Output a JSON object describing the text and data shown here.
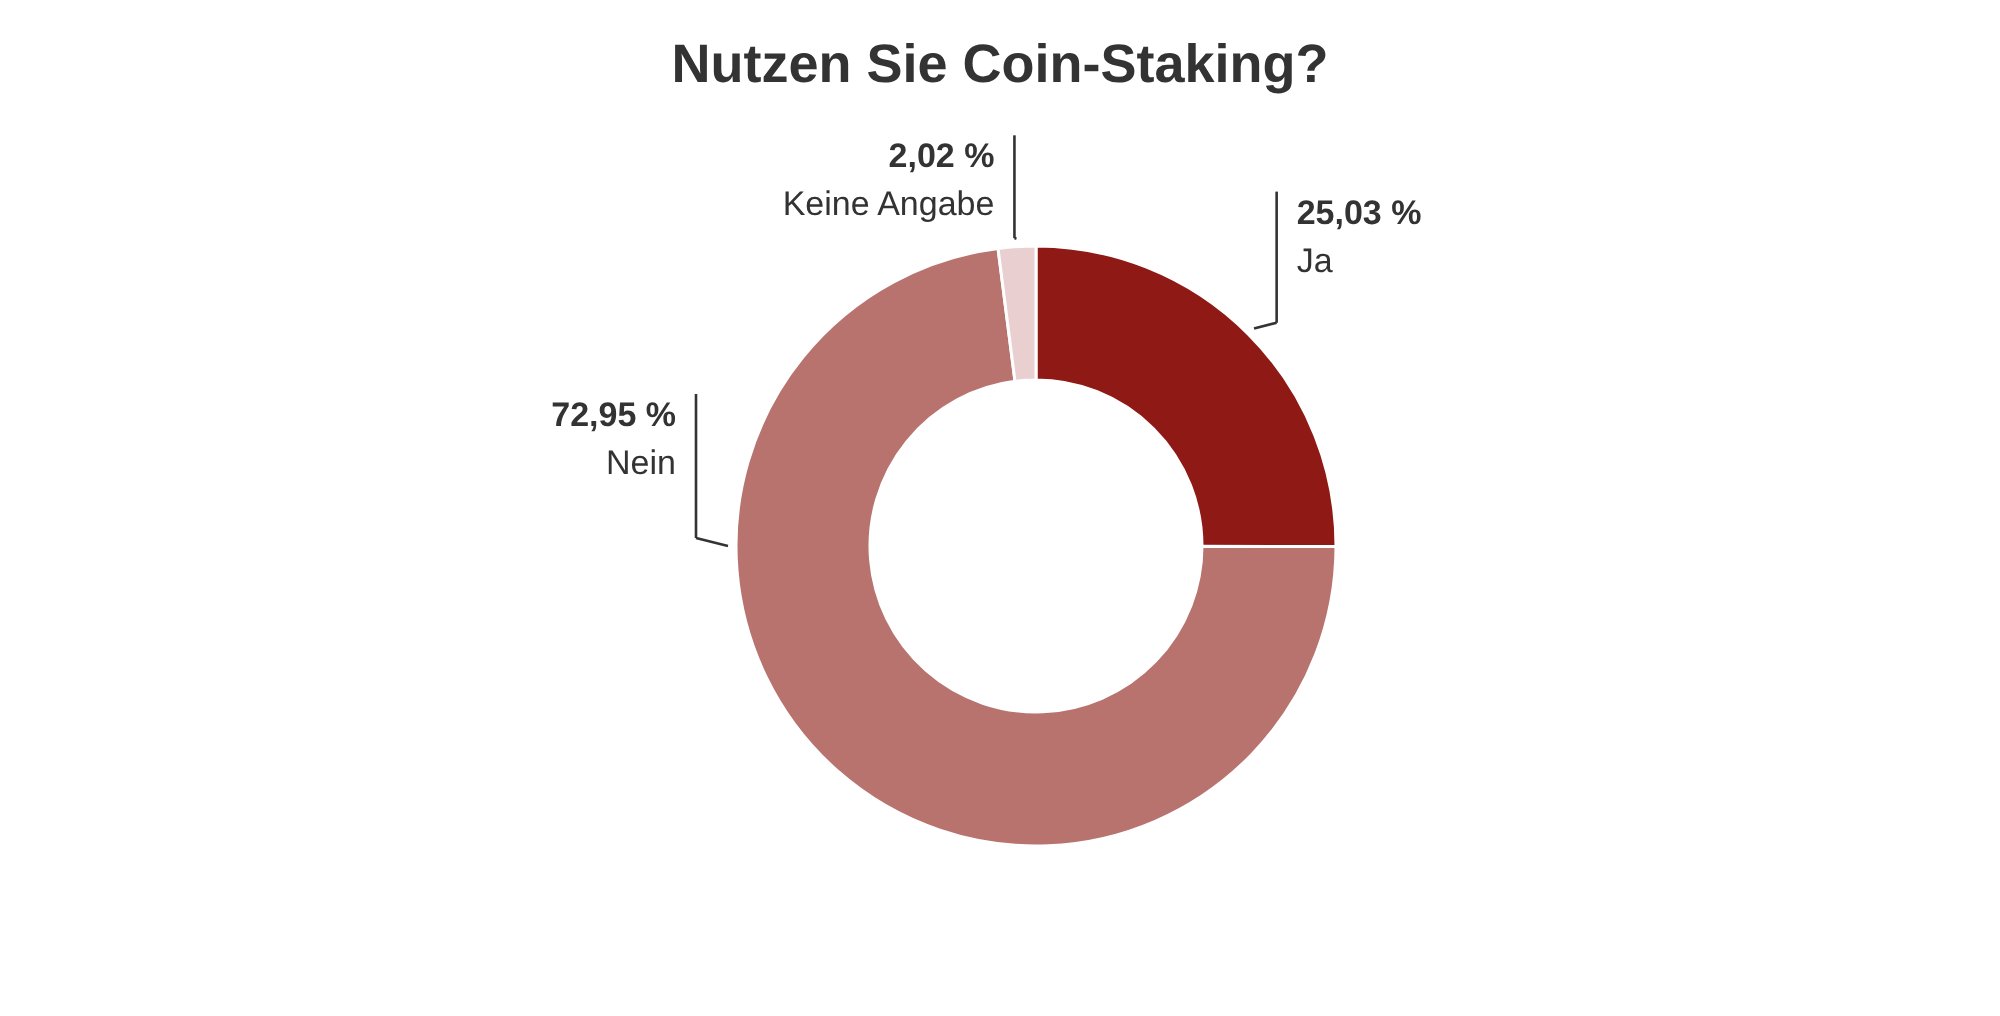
{
  "chart_data": {
    "type": "donut",
    "title": "Nutzen Sie Coin-Staking?",
    "categories": [
      "Ja",
      "Nein",
      "Keine Angabe"
    ],
    "values": [
      25.03,
      72.95,
      2.02
    ],
    "value_labels": [
      "25,03 %",
      "72,95 %",
      "2,02 %"
    ],
    "colors": [
      "#8f1915",
      "#b8736f",
      "#e9cfcf"
    ]
  }
}
